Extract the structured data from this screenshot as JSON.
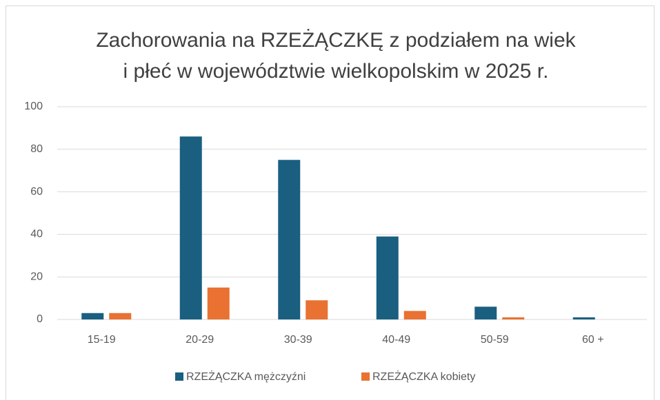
{
  "chart_data": {
    "type": "bar",
    "title": [
      "Zachorowania na RZEŻĄCZKĘ z podziałem na wiek",
      "i płeć w województwie wielkopolskim w 2025 r."
    ],
    "categories": [
      "15-19",
      "20-29",
      "30-39",
      "40-49",
      "50-59",
      "60 +"
    ],
    "series": [
      {
        "name": "RZEŻĄCZKA mężczyźni",
        "color": "#1a5f80",
        "values": [
          3,
          86,
          75,
          39,
          6,
          1
        ]
      },
      {
        "name": "RZEŻĄCZKA kobiety",
        "color": "#e97132",
        "values": [
          3,
          15,
          9,
          4,
          1,
          0
        ]
      }
    ],
    "ylim": [
      0,
      100
    ],
    "yticks": [
      0,
      20,
      40,
      60,
      80,
      100
    ],
    "grid": true,
    "legend": "bottom"
  }
}
